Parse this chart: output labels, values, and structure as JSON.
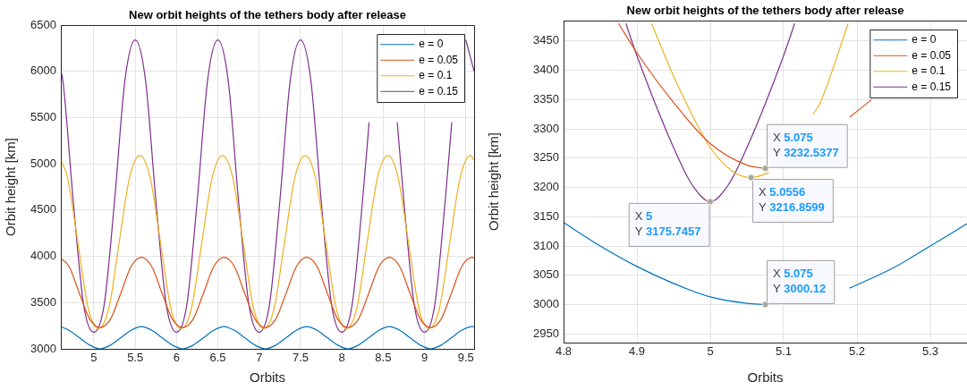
{
  "chart_data": [
    {
      "type": "line",
      "title": "New orbit heights of the tethers body after release",
      "xlabel": "Orbits",
      "ylabel": "Orbit height [km]",
      "xlim": [
        4.6,
        9.6
      ],
      "xticks": [
        5,
        5.5,
        6,
        6.5,
        7,
        7.5,
        8,
        8.5,
        9,
        9.5
      ],
      "ylim": [
        3000,
        6500
      ],
      "yticks": [
        3000,
        3500,
        4000,
        4500,
        5000,
        5500,
        6000,
        6500
      ],
      "grid": true,
      "legend": "top right",
      "marker": "none",
      "line_style": "solid",
      "series": [
        {
          "name": "e = 0",
          "color": "#0072bd",
          "x": [
            4.6,
            4.7,
            4.825,
            4.95,
            5.075,
            5.2,
            5.325,
            5.45,
            5.575,
            5.7,
            5.825,
            5.95,
            6.075,
            6.2,
            6.325,
            6.45,
            6.575,
            6.7,
            6.825,
            6.95,
            7.075,
            7.2,
            7.325,
            7.45,
            7.575,
            7.7,
            7.825,
            7.95,
            8.075,
            8.2,
            8.325,
            8.45,
            8.575,
            8.7,
            8.825,
            8.95,
            9.075,
            9.2,
            9.325,
            9.45,
            9.575,
            9.6
          ],
          "values": [
            3240,
            3200,
            3120,
            3040,
            3000,
            3040,
            3120,
            3200,
            3240,
            3200,
            3120,
            3040,
            3000,
            3040,
            3120,
            3200,
            3240,
            3200,
            3120,
            3040,
            3000,
            3040,
            3120,
            3200,
            3240,
            3200,
            3120,
            3040,
            3000,
            3040,
            3120,
            3200,
            3240,
            3200,
            3120,
            3040,
            3000,
            3040,
            3120,
            3200,
            3240,
            3240
          ]
        },
        {
          "name": "e = 0.05",
          "color": "#d95319",
          "x": [
            4.6,
            4.7,
            4.825,
            4.95,
            5.075,
            5.2,
            5.325,
            5.45,
            5.575,
            5.7,
            5.825,
            5.95,
            6.075,
            6.2,
            6.325,
            6.45,
            6.575,
            6.7,
            6.825,
            6.95,
            7.075,
            7.2,
            7.325,
            7.45,
            7.575,
            7.7,
            7.825,
            7.95,
            8.075,
            8.2,
            8.325,
            8.45,
            8.575,
            8.7,
            8.825,
            8.95,
            9.075,
            9.2,
            9.325,
            9.45,
            9.575,
            9.6
          ],
          "values": [
            3980,
            3890,
            3600,
            3320,
            3230,
            3320,
            3600,
            3890,
            3990,
            3890,
            3600,
            3320,
            3230,
            3320,
            3600,
            3890,
            3990,
            3890,
            3600,
            3320,
            3230,
            3320,
            3600,
            3890,
            3990,
            3890,
            3600,
            3320,
            3230,
            3320,
            3600,
            3890,
            3990,
            3890,
            3600,
            3320,
            3230,
            3320,
            3600,
            3890,
            3990,
            3980
          ]
        },
        {
          "name": "e = 0.1",
          "color": "#edb120",
          "x": [
            4.6,
            4.681,
            4.806,
            4.931,
            5.056,
            5.181,
            5.306,
            5.431,
            5.556,
            5.681,
            5.806,
            5.931,
            6.056,
            6.181,
            6.306,
            6.431,
            6.556,
            6.681,
            6.806,
            6.931,
            7.056,
            7.181,
            7.306,
            7.431,
            7.556,
            7.681,
            7.806,
            7.931,
            8.056,
            8.181,
            8.306,
            8.431,
            8.556,
            8.681,
            8.806,
            8.931,
            9.056,
            9.181,
            9.306,
            9.431,
            9.556,
            9.6
          ],
          "values": [
            5040,
            4850,
            4150,
            3440,
            3220,
            3440,
            4150,
            4850,
            5090,
            4850,
            4150,
            3440,
            3220,
            3440,
            4150,
            4850,
            5090,
            4850,
            4150,
            3440,
            3220,
            3440,
            4150,
            4850,
            5090,
            4850,
            4150,
            3440,
            3220,
            3440,
            4150,
            4850,
            5090,
            4850,
            4150,
            3440,
            3220,
            3440,
            4150,
            4850,
            5090,
            5040
          ]
        },
        {
          "name": "e = 0.15",
          "color": "#7e2f8e",
          "x": [
            4.6,
            4.625,
            4.75,
            4.875,
            5,
            5.125,
            5.25,
            5.375,
            5.5,
            5.625,
            5.75,
            5.875,
            6,
            6.125,
            6.25,
            6.375,
            6.5,
            6.625,
            6.75,
            6.875,
            7,
            7.125,
            7.25,
            7.375,
            7.5,
            7.625,
            7.75,
            7.875,
            8,
            8.125,
            8.25,
            8.33,
            8.5,
            8.67,
            8.75,
            8.875,
            9,
            9.125,
            9.25,
            9.33,
            9.4,
            9.5,
            9.6
          ],
          "values": [
            6000,
            5900,
            4600,
            3480,
            3180,
            3480,
            4600,
            5900,
            6340,
            5900,
            4600,
            3480,
            3180,
            3480,
            4600,
            5900,
            6340,
            5900,
            4600,
            3480,
            3180,
            3480,
            4600,
            5900,
            6340,
            5900,
            4600,
            3480,
            3180,
            3480,
            4600,
            5450,
            null,
            5450,
            4600,
            3480,
            3180,
            3480,
            4600,
            5450,
            null,
            6340,
            6000
          ]
        }
      ]
    },
    {
      "type": "line",
      "title": "New orbit heights of the tethers body after release",
      "xlabel": "Orbits",
      "ylabel": "Orbit height [km]",
      "xlim": [
        4.8,
        5.35
      ],
      "xticks": [
        4.8,
        4.9,
        5,
        5.1,
        5.2,
        5.3
      ],
      "ylim": [
        2935,
        3485
      ],
      "yticks": [
        2950,
        3000,
        3050,
        3100,
        3150,
        3200,
        3250,
        3300,
        3350,
        3400,
        3450
      ],
      "grid": true,
      "legend": "top right",
      "marker": "none",
      "line_style": "solid",
      "series": [
        {
          "name": "e = 0",
          "color": "#0072bd",
          "x": [
            4.8,
            4.85,
            4.9,
            4.95,
            5,
            5.05,
            5.075,
            5.13,
            5.19,
            5.25,
            5.3,
            5.35
          ],
          "values": [
            3140,
            3100,
            3065,
            3036,
            3013,
            3002,
            3000.12,
            null,
            3028,
            3063,
            3100,
            3138
          ]
        },
        {
          "name": "e = 0.05",
          "color": "#d95319",
          "x": [
            4.875,
            4.9,
            4.95,
            5,
            5.05,
            5.075,
            5.13,
            5.19,
            5.22
          ],
          "values": [
            3480,
            3430,
            3345,
            3275,
            3238,
            3232.5377,
            null,
            3320,
            3350
          ]
        },
        {
          "name": "e = 0.1",
          "color": "#edb120",
          "x": [
            4.92,
            4.95,
            5,
            5.03,
            5.0556,
            5.08,
            5.1,
            5.14,
            5.15,
            5.188
          ],
          "values": [
            3480,
            3390,
            3268,
            3228,
            3216.8599,
            3225,
            null,
            3325,
            3345,
            3480
          ]
        },
        {
          "name": "e = 0.15",
          "color": "#7e2f8e",
          "x": [
            4.885,
            4.9,
            4.95,
            4.975,
            5,
            5.025,
            5.05,
            5.1,
            5.115
          ],
          "values": [
            3480,
            3425,
            3268,
            3205,
            3175.7457,
            3205,
            3268,
            3425,
            3480
          ]
        }
      ],
      "annotations": [
        {
          "text": "X 5.075\nY 3232.5377",
          "x": 5.075,
          "y": 3232.5377
        },
        {
          "text": "X 5.0556\nY 3216.8599",
          "x": 5.0556,
          "y": 3216.8599
        },
        {
          "text": "X 5\nY 3175.7457",
          "x": 5,
          "y": 3175.7457
        },
        {
          "text": "X 5.075\nY 3000.12",
          "x": 5.075,
          "y": 3000.12
        }
      ]
    }
  ]
}
